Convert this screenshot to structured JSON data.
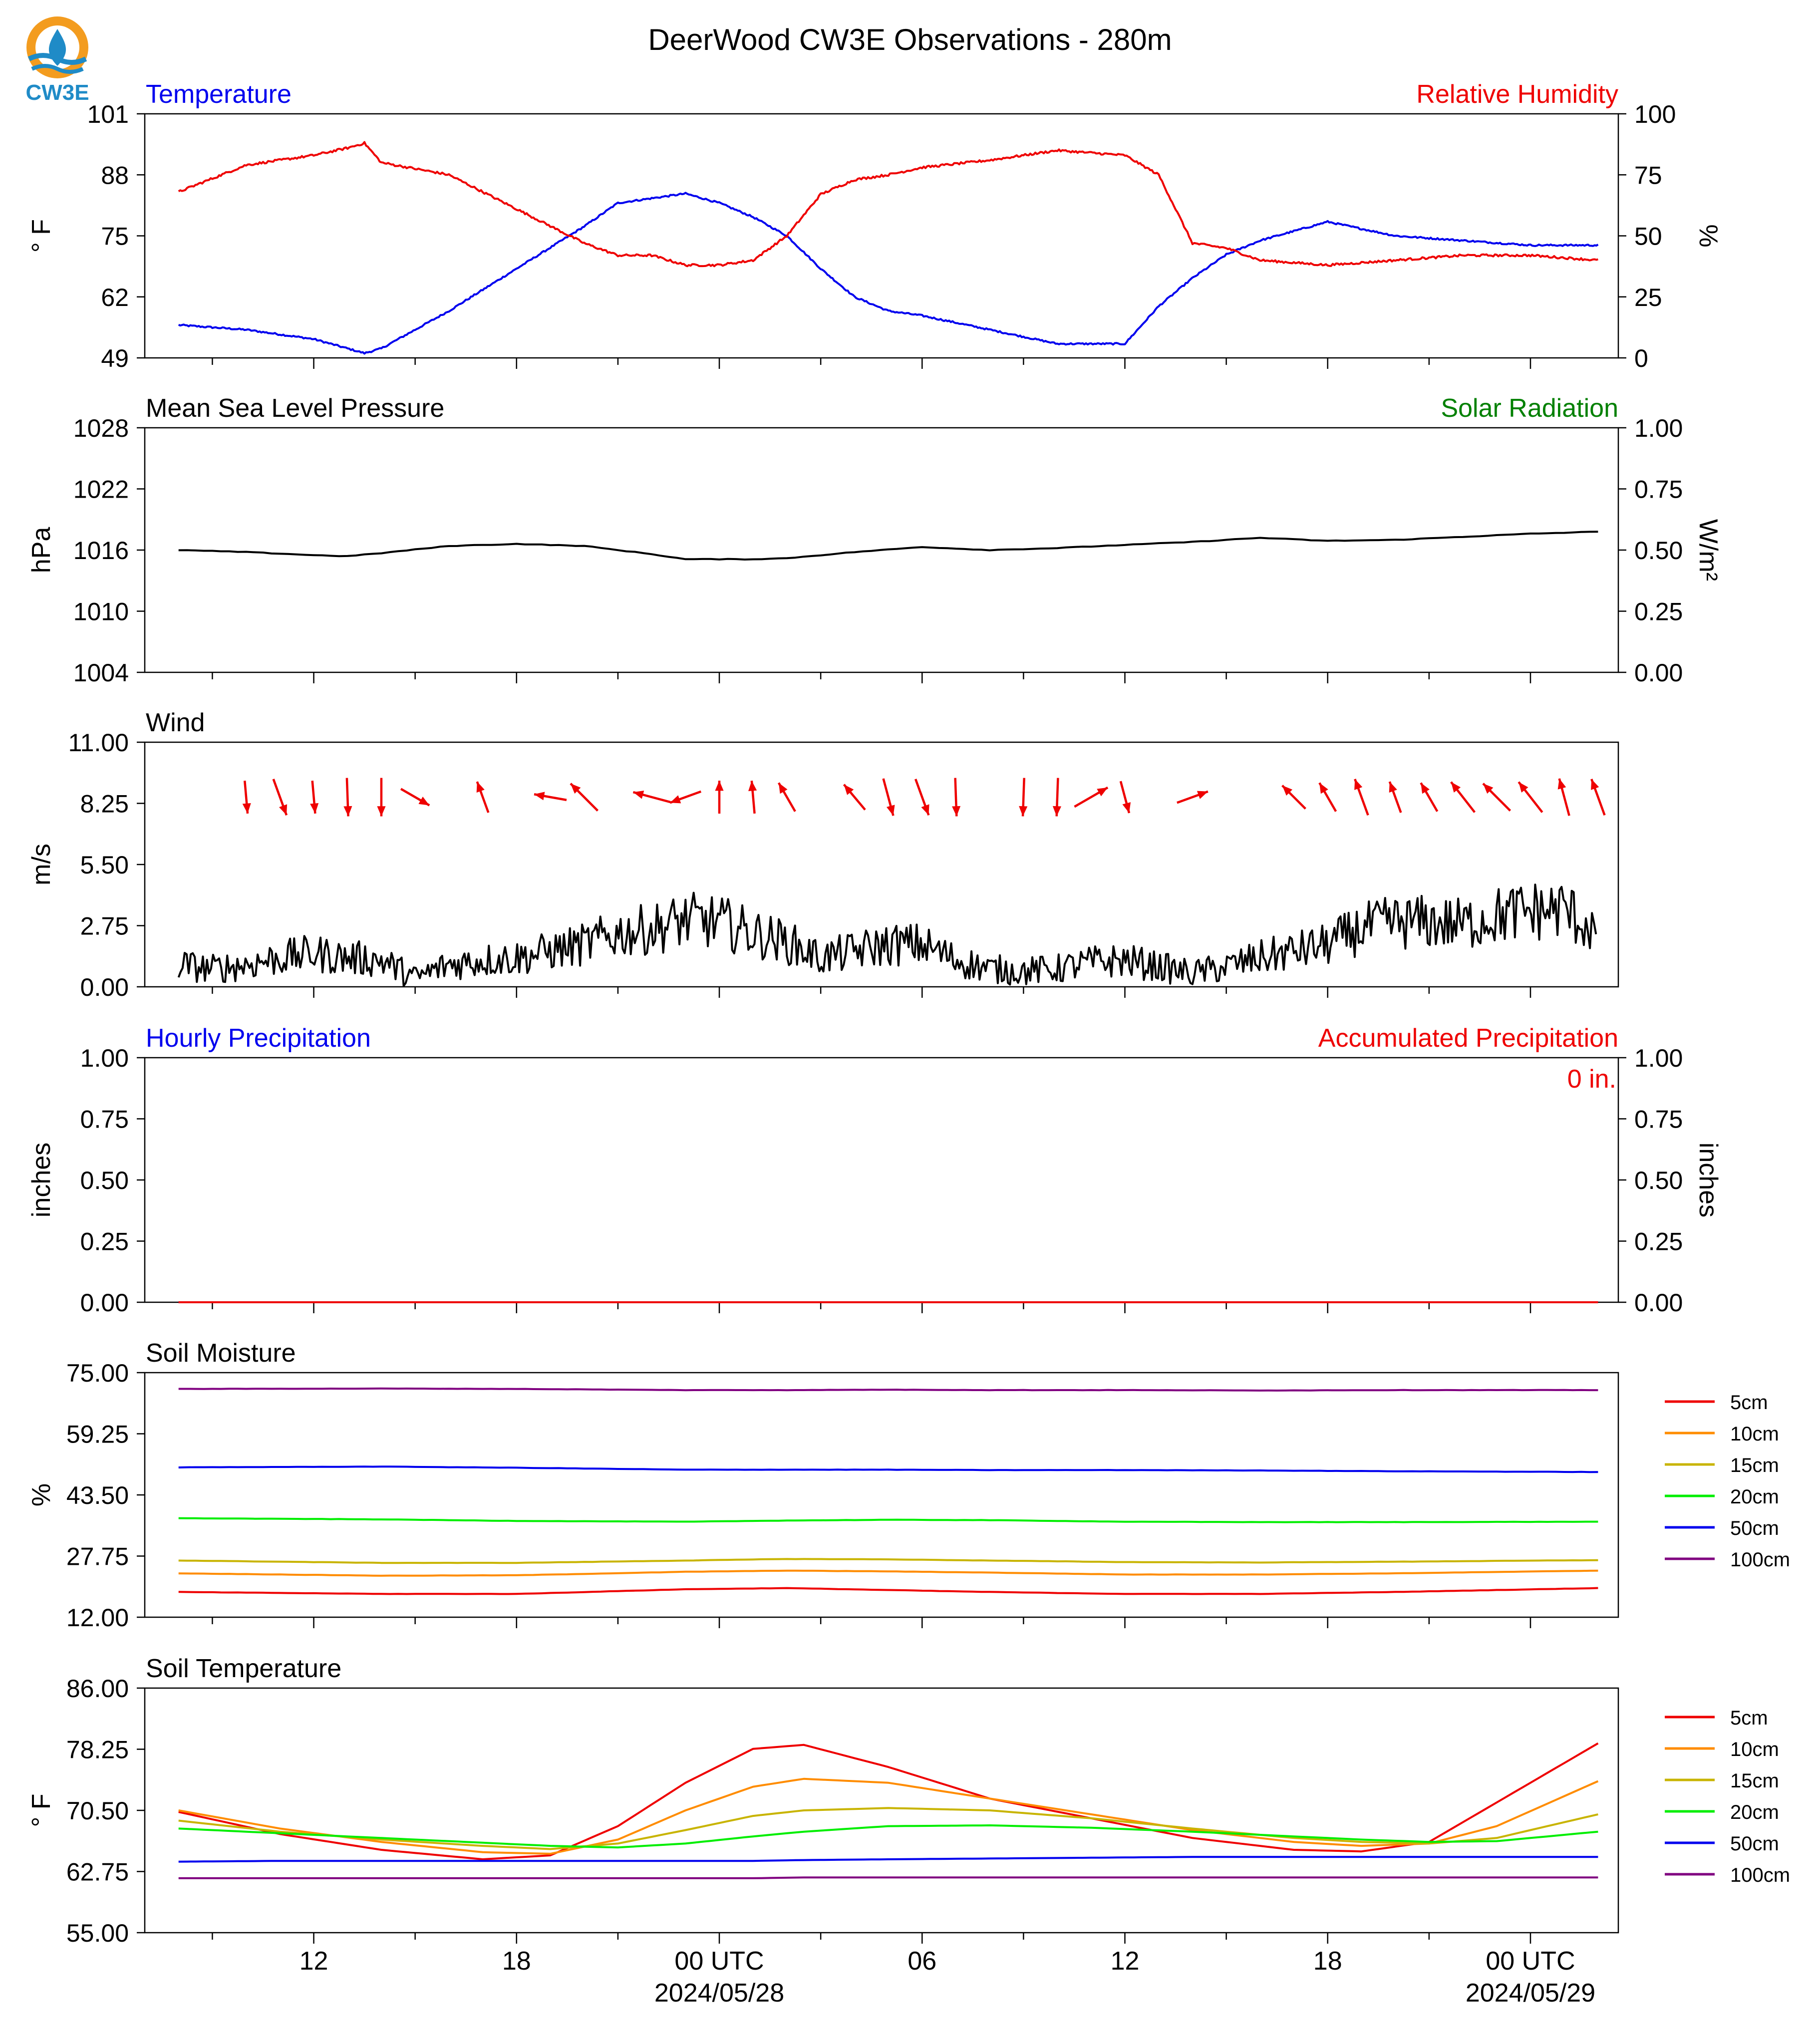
{
  "title": "DeerWood CW3E Observations - 280m",
  "logo": {
    "text": "CW3E",
    "icon": "cw3e-drop-logo-icon"
  },
  "colors": {
    "blue": "#0000ee",
    "red": "#ee0000",
    "green": "#008000",
    "black": "#000000"
  },
  "x_axis": {
    "tick_labels": [
      "12",
      "18",
      "00 UTC",
      "06",
      "12",
      "18",
      "00 UTC"
    ],
    "date_labels": [
      "2024/05/28",
      "2024/05/29"
    ]
  },
  "chart_data": [
    {
      "type": "line",
      "title_left": "Temperature",
      "title_right": "Relative Humidity",
      "ylabel_left": "° F",
      "ylabel_right": "%",
      "ylim_left": [
        49,
        101
      ],
      "yticks_left": [
        "49",
        "62",
        "75",
        "88",
        "101"
      ],
      "ylim_right": [
        0,
        100
      ],
      "yticks_right": [
        "0",
        "25",
        "50",
        "75",
        "100"
      ],
      "hours_from_start": [
        0,
        2,
        4,
        5,
        5.5,
        6,
        8,
        10,
        12,
        13,
        14,
        15,
        16,
        17,
        18,
        19,
        20,
        21,
        22,
        24,
        26,
        28,
        29,
        30,
        31,
        32,
        34,
        36,
        38,
        40,
        41,
        42
      ],
      "series": [
        {
          "name": "Temperature",
          "axis": "left",
          "color": "#0000ee",
          "values": [
            56,
            55,
            53,
            51,
            50,
            51,
            59,
            68,
            77,
            82,
            83,
            84,
            82,
            79,
            75,
            68,
            62,
            59,
            58,
            55,
            52,
            52,
            60,
            66,
            71,
            74,
            78,
            75,
            74,
            73,
            73,
            73
          ]
        },
        {
          "name": "Relative Humidity",
          "axis": "right",
          "color": "#ee0000",
          "values": [
            68,
            79,
            83,
            86,
            88,
            80,
            75,
            61,
            47,
            42,
            42,
            38,
            38,
            40,
            50,
            67,
            73,
            75,
            78,
            81,
            85,
            83,
            75,
            47,
            45,
            40,
            38,
            40,
            42,
            42,
            41,
            40
          ]
        }
      ]
    },
    {
      "type": "line",
      "title_left": "Mean Sea Level Pressure",
      "title_right": "Solar Radiation",
      "ylabel_left": "hPa",
      "ylabel_right": "W/m²",
      "ylim_left": [
        1004,
        1028
      ],
      "yticks_left": [
        "1004",
        "1010",
        "1016",
        "1022",
        "1028"
      ],
      "ylim_right": [
        0,
        1
      ],
      "yticks_right": [
        "0.00",
        "0.25",
        "0.50",
        "0.75",
        "1.00"
      ],
      "hours_from_start": [
        0,
        2,
        4,
        5,
        6,
        8,
        10,
        12,
        14,
        15,
        16,
        17,
        18,
        19,
        20,
        22,
        24,
        26,
        28,
        30,
        32,
        34,
        36,
        38,
        40,
        41,
        42
      ],
      "series": [
        {
          "name": "Mean Sea Level Pressure",
          "axis": "left",
          "color": "#000000",
          "values": [
            1016.0,
            1015.8,
            1015.5,
            1015.4,
            1015.7,
            1016.4,
            1016.6,
            1016.4,
            1015.6,
            1015.1,
            1015.1,
            1015.1,
            1015.2,
            1015.5,
            1015.8,
            1016.3,
            1016.0,
            1016.2,
            1016.5,
            1016.8,
            1017.2,
            1016.9,
            1017.0,
            1017.3,
            1017.6,
            1017.7,
            1017.8
          ]
        }
      ]
    },
    {
      "type": "line",
      "title_left": "Wind",
      "ylabel_left": "m/s",
      "ylim_left": [
        0,
        11
      ],
      "yticks_left": [
        "0.00",
        "2.75",
        "5.50",
        "8.25",
        "11.00"
      ],
      "hours_from_start": [
        0,
        1,
        2,
        3,
        4,
        5,
        6,
        7,
        8,
        9,
        10,
        11,
        12,
        13,
        14,
        15,
        16,
        17,
        18,
        19,
        20,
        21,
        22,
        23,
        24,
        25,
        26,
        27,
        28,
        29,
        30,
        31,
        32,
        33,
        34,
        35,
        36,
        37,
        38,
        39,
        40,
        41,
        42
      ],
      "series": [
        {
          "name": "Wind speed",
          "axis": "left",
          "color": "#000000",
          "values": [
            1.0,
            0.8,
            1.0,
            1.3,
            1.5,
            1.3,
            1.2,
            0.4,
            1.0,
            1.2,
            1.3,
            1.6,
            1.9,
            2.4,
            2.6,
            3.0,
            2.9,
            2.4,
            2.0,
            1.3,
            1.6,
            1.9,
            1.9,
            1.2,
            0.8,
            0.7,
            0.8,
            1.1,
            1.2,
            0.9,
            0.6,
            0.9,
            1.3,
            1.6,
            1.9,
            2.6,
            2.9,
            2.9,
            2.8,
            3.2,
            3.4,
            3.5,
            2.4
          ]
        }
      ],
      "wind_arrows": {
        "color": "#ee0000",
        "hours_from_start": [
          2,
          3,
          4,
          5,
          6,
          7,
          9,
          11,
          12,
          14,
          15,
          16,
          17,
          18,
          20,
          21,
          22,
          23,
          25,
          26,
          27,
          28,
          30,
          33,
          34,
          35,
          36,
          37,
          38,
          39,
          40,
          41,
          42
        ],
        "direction_deg": [
          175,
          160,
          175,
          178,
          180,
          120,
          340,
          280,
          315,
          285,
          250,
          0,
          355,
          330,
          320,
          165,
          160,
          178,
          182,
          182,
          60,
          165,
          70,
          315,
          330,
          340,
          340,
          330,
          322,
          315,
          322,
          345,
          340
        ],
        "speed_ms": [
          3.0,
          3.5,
          3.0,
          3.5,
          3.5,
          3.0,
          3.0,
          3.0,
          3.5,
          3.5,
          3.0,
          3.0,
          3.0,
          3.0,
          3.0,
          3.5,
          3.5,
          3.5,
          3.5,
          3.5,
          3.5,
          3.0,
          3.0,
          3.0,
          3.0,
          3.5,
          3.0,
          3.0,
          3.5,
          3.5,
          3.5,
          3.5,
          3.5
        ]
      }
    },
    {
      "type": "line",
      "title_left": "Hourly Precipitation",
      "title_right": "Accumulated Precipitation",
      "annotation": "0 in.",
      "ylabel_left": "inches",
      "ylabel_right": "inches",
      "ylim_left": [
        0,
        1
      ],
      "yticks_left": [
        "0.00",
        "0.25",
        "0.50",
        "0.75",
        "1.00"
      ],
      "ylim_right": [
        0,
        1
      ],
      "yticks_right": [
        "0.00",
        "0.25",
        "0.50",
        "0.75",
        "1.00"
      ],
      "hours_from_start": [
        0,
        42
      ],
      "series": [
        {
          "name": "Hourly Precipitation",
          "axis": "left",
          "color": "#0000ee",
          "values": [
            0,
            0
          ]
        },
        {
          "name": "Accumulated Precipitation",
          "axis": "left",
          "color": "#ee0000",
          "values": [
            0,
            0
          ]
        }
      ]
    },
    {
      "type": "line",
      "title_left": "Soil Moisture",
      "ylabel_left": "%",
      "ylim_left": [
        12,
        75
      ],
      "yticks_left": [
        "12.00",
        "27.75",
        "43.50",
        "59.25",
        "75.00"
      ],
      "legend": "right",
      "hours_from_start": [
        0,
        6,
        10,
        15,
        18,
        21,
        24,
        28,
        32,
        36,
        42
      ],
      "series": [
        {
          "name": "5cm",
          "color": "#ee0000",
          "values": [
            18.5,
            18.0,
            18.0,
            19.2,
            19.5,
            19.0,
            18.5,
            18.0,
            18.0,
            18.5,
            19.5
          ]
        },
        {
          "name": "10cm",
          "color": "#ff8c00",
          "values": [
            23.3,
            22.7,
            22.8,
            23.7,
            24.0,
            23.8,
            23.5,
            23.0,
            23.0,
            23.3,
            24.0
          ]
        },
        {
          "name": "15cm",
          "color": "#c8b400",
          "values": [
            26.6,
            26.0,
            26.0,
            26.6,
            27.0,
            26.9,
            26.6,
            26.2,
            26.1,
            26.3,
            26.7
          ]
        },
        {
          "name": "20cm",
          "color": "#00ee00",
          "values": [
            37.5,
            37.2,
            36.8,
            36.6,
            36.9,
            37.1,
            37.0,
            36.6,
            36.5,
            36.5,
            36.6
          ]
        },
        {
          "name": "50cm",
          "color": "#0000ee",
          "values": [
            50.6,
            50.8,
            50.5,
            50.0,
            50.0,
            50.0,
            49.9,
            49.9,
            49.8,
            49.6,
            49.4
          ]
        },
        {
          "name": "100cm",
          "color": "#800080",
          "values": [
            70.8,
            70.9,
            70.8,
            70.5,
            70.5,
            70.6,
            70.5,
            70.5,
            70.4,
            70.5,
            70.5
          ]
        }
      ]
    },
    {
      "type": "line",
      "title_left": "Soil Temperature",
      "ylabel_left": "° F",
      "ylim_left": [
        55,
        86
      ],
      "yticks_left": [
        "55.00",
        "62.75",
        "70.50",
        "78.25",
        "86.00"
      ],
      "legend": "right",
      "hours_from_start": [
        0,
        3,
        6,
        9,
        11,
        13,
        15,
        17,
        18.5,
        21,
        24,
        27,
        30,
        33,
        35,
        37,
        39,
        42
      ],
      "series": [
        {
          "name": "5cm",
          "color": "#ee0000",
          "values": [
            70.3,
            67.5,
            65.5,
            64.3,
            64.8,
            68.5,
            74.0,
            78.3,
            78.8,
            76.0,
            72.0,
            69.5,
            67.0,
            65.5,
            65.3,
            66.5,
            71.5,
            79.0
          ]
        },
        {
          "name": "10cm",
          "color": "#ff8c00",
          "values": [
            70.5,
            68.2,
            66.5,
            65.2,
            65.0,
            66.8,
            70.5,
            73.5,
            74.5,
            74.0,
            72.0,
            70.0,
            68.0,
            66.5,
            66.0,
            66.3,
            68.5,
            74.2
          ]
        },
        {
          "name": "15cm",
          "color": "#c8b400",
          "values": [
            69.2,
            67.8,
            66.8,
            66.0,
            65.6,
            66.3,
            68.0,
            69.8,
            70.5,
            70.8,
            70.5,
            69.5,
            68.2,
            67.0,
            66.5,
            66.3,
            67.0,
            70.0
          ]
        },
        {
          "name": "20cm",
          "color": "#00ee00",
          "values": [
            68.2,
            67.6,
            67.0,
            66.4,
            66.0,
            65.8,
            66.3,
            67.2,
            67.8,
            68.5,
            68.6,
            68.3,
            67.8,
            67.2,
            66.8,
            66.5,
            66.6,
            67.8
          ]
        },
        {
          "name": "50cm",
          "color": "#0000ee",
          "values": [
            64.0,
            64.1,
            64.1,
            64.1,
            64.1,
            64.1,
            64.1,
            64.1,
            64.2,
            64.3,
            64.4,
            64.5,
            64.6,
            64.6,
            64.6,
            64.6,
            64.6,
            64.6
          ]
        },
        {
          "name": "100cm",
          "color": "#800080",
          "values": [
            61.9,
            61.9,
            61.9,
            61.9,
            61.9,
            61.9,
            61.9,
            61.9,
            62.0,
            62.0,
            62.0,
            62.0,
            62.0,
            62.0,
            62.0,
            62.0,
            62.0,
            62.0
          ]
        }
      ]
    }
  ]
}
